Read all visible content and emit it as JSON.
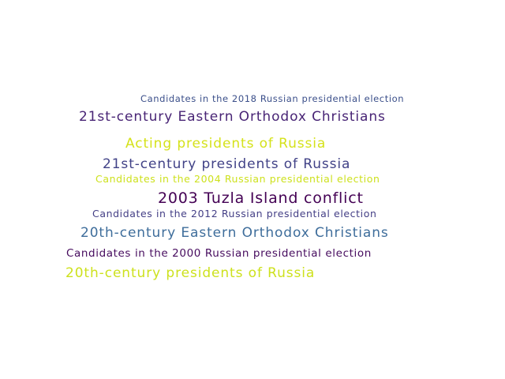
{
  "words": [
    {
      "text": "Candidates in the 2018 Russian presidential election",
      "color": "#3b4f8a"
    },
    {
      "text": "21st-century Eastern Orthodox Christians",
      "color": "#482475"
    },
    {
      "text": "Acting presidents of Russia",
      "color": "#d5e21a"
    },
    {
      "text": "21st-century presidents of Russia",
      "color": "#414287"
    },
    {
      "text": "Candidates in the 2004 Russian presidential election",
      "color": "#cde11d"
    },
    {
      "text": "2003 Tuzla Island conflict",
      "color": "#440154"
    },
    {
      "text": "Candidates in the 2012 Russian presidential election",
      "color": "#433e85"
    },
    {
      "text": "20th-century Eastern Orthodox Christians",
      "color": "#3e6d9b"
    },
    {
      "text": "Candidates in the 2000 Russian presidential election",
      "color": "#460b5e"
    },
    {
      "text": "20th-century presidents of Russia",
      "color": "#cde11d"
    }
  ]
}
